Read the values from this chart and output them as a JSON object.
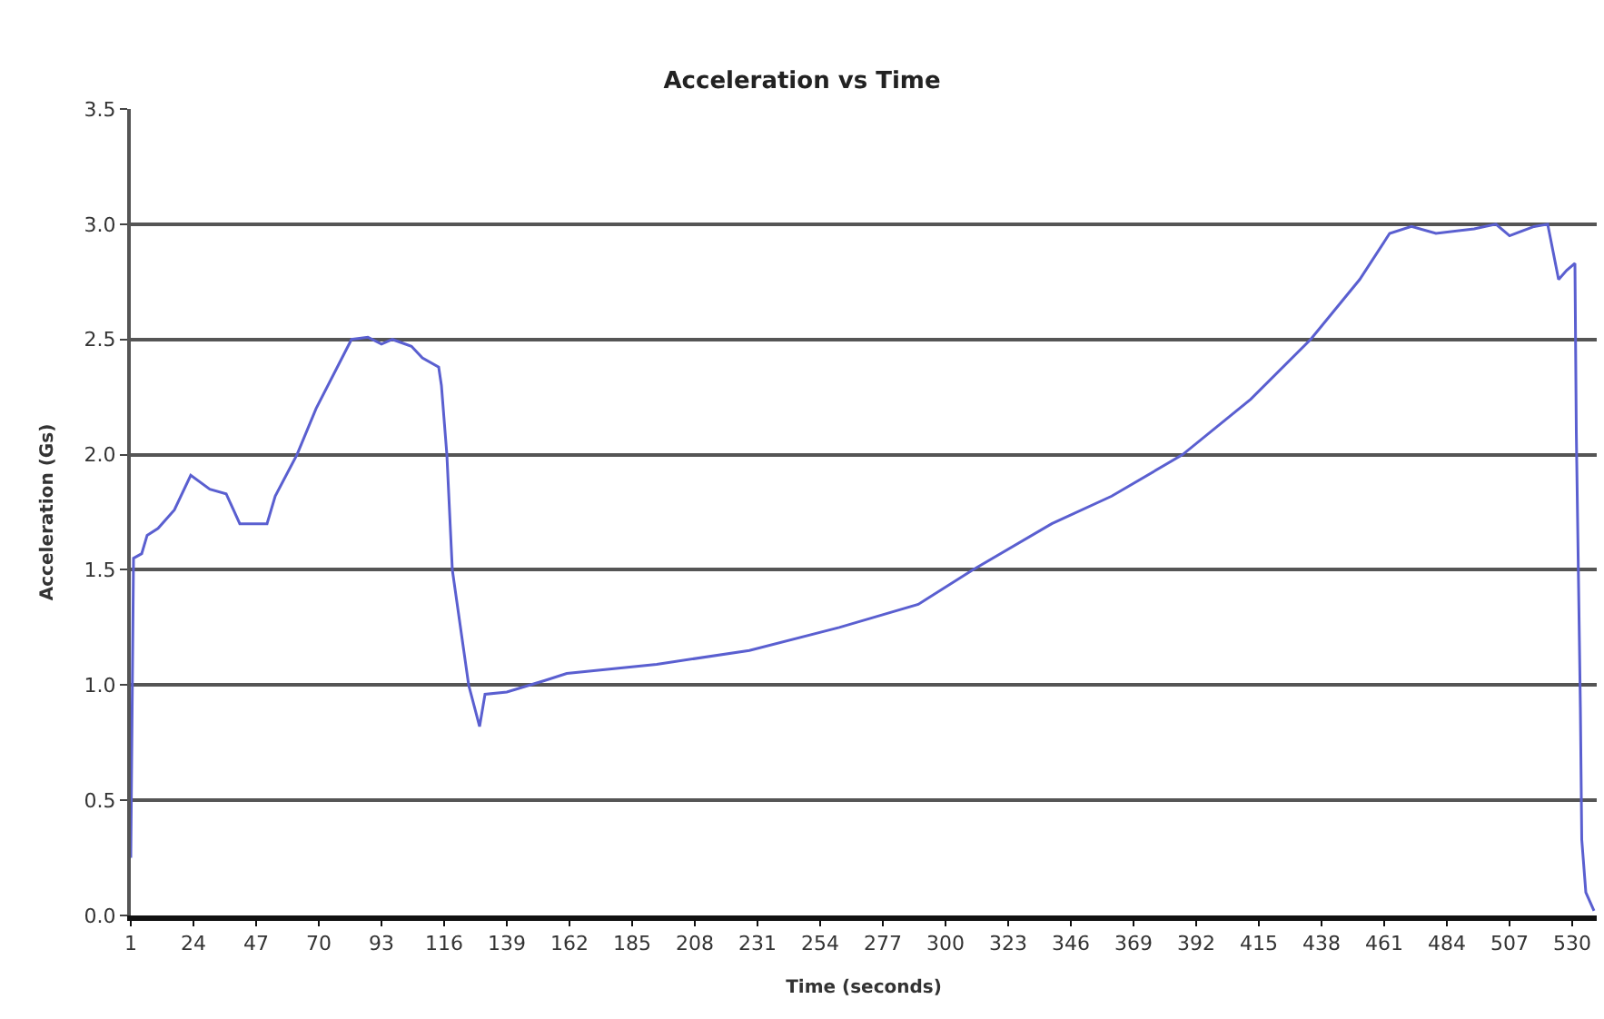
{
  "chart_data": {
    "type": "line",
    "title": "Acceleration vs Time",
    "xlabel": "Time (seconds)",
    "ylabel": "Acceleration (Gs)",
    "xlim": [
      1,
      539
    ],
    "xticks": [
      1,
      24,
      47,
      70,
      93,
      116,
      139,
      162,
      185,
      208,
      231,
      254,
      277,
      300,
      323,
      346,
      369,
      392,
      415,
      438,
      461,
      484,
      507,
      530
    ],
    "ylim": [
      0,
      3.5
    ],
    "yticks": [
      {
        "value": 0,
        "label": "0.0"
      },
      0.5,
      {
        "value": 1,
        "label": "1.0"
      },
      1.5,
      {
        "value": 2,
        "label": "2.0"
      },
      2.5,
      {
        "value": 3,
        "label": "3.0"
      },
      3.5
    ],
    "grid": "y",
    "marker": "none",
    "line_style": "solid",
    "series": [
      {
        "color": "#5a5fd0",
        "x": [
          1,
          1.5,
          2,
          5,
          7,
          11,
          17,
          23,
          30,
          36,
          41,
          51,
          54,
          62,
          69,
          82,
          88,
          93,
          97,
          104,
          108,
          114,
          115,
          117,
          119,
          125,
          129,
          131,
          139,
          153,
          161,
          194,
          228,
          261,
          290,
          310,
          339,
          361,
          387,
          412,
          434,
          452,
          463,
          471,
          480,
          494,
          502,
          507,
          516,
          521,
          525,
          528,
          531,
          531.5,
          533,
          533.5,
          535,
          538
        ],
        "values": [
          0.25,
          0.9,
          1.55,
          1.57,
          1.65,
          1.68,
          1.76,
          1.91,
          1.85,
          1.83,
          1.7,
          1.7,
          1.82,
          2.0,
          2.2,
          2.5,
          2.51,
          2.48,
          2.5,
          2.47,
          2.42,
          2.38,
          2.3,
          2.0,
          1.5,
          1.0,
          0.82,
          0.96,
          0.97,
          1.02,
          1.05,
          1.09,
          1.15,
          1.25,
          1.35,
          1.5,
          1.7,
          1.82,
          2.0,
          2.24,
          2.5,
          2.76,
          2.96,
          2.99,
          2.96,
          2.98,
          3.0,
          2.95,
          2.99,
          3.0,
          2.76,
          2.8,
          2.83,
          2.1,
          0.9,
          0.33,
          0.1,
          0.02
        ]
      }
    ]
  }
}
